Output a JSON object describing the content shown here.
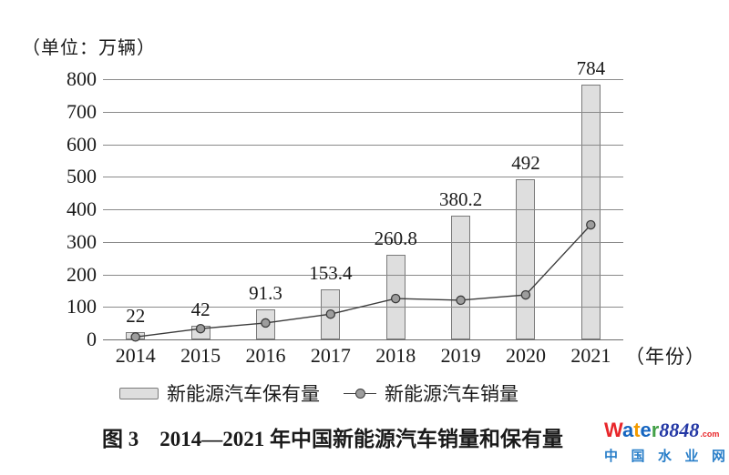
{
  "unit_label": "（单位：万辆）",
  "chart_data": {
    "type": "bar+line",
    "categories": [
      "2014",
      "2015",
      "2016",
      "2017",
      "2018",
      "2019",
      "2020",
      "2021"
    ],
    "series": [
      {
        "name": "新能源汽车保有量",
        "type": "bar",
        "values": [
          22,
          42,
          91.3,
          153.4,
          260.8,
          380.2,
          492,
          784
        ],
        "data_labels": [
          "22",
          "42",
          "91.3",
          "153.4",
          "260.8",
          "380.2",
          "492",
          "784"
        ]
      },
      {
        "name": "新能源汽车销量",
        "type": "line",
        "values": [
          7.5,
          33,
          50.7,
          77.7,
          125.6,
          120.6,
          136.7,
          352.1
        ],
        "values_are_estimates": true
      }
    ],
    "ylim": [
      0,
      800
    ],
    "yticks": [
      0,
      100,
      200,
      300,
      400,
      500,
      600,
      700,
      800
    ],
    "x_axis_suffix": "（年份）",
    "grid": true,
    "legend_position": "bottom-center"
  },
  "caption": "图 3　2014—2021 年中国新能源汽车销量和保有量",
  "watermark": {
    "brand_letters": [
      {
        "ch": "W",
        "color": "#e8262a"
      },
      {
        "ch": "a",
        "color": "#1565c0"
      },
      {
        "ch": "t",
        "color": "#f29b00"
      },
      {
        "ch": "e",
        "color": "#1565c0"
      },
      {
        "ch": "r",
        "color": "#43a047"
      }
    ],
    "brand_number": "8848",
    "brand_tld": ".com",
    "subtitle_chars": [
      "中",
      "国",
      "水",
      "业",
      "网"
    ]
  },
  "colors": {
    "bar_fill": "#dedede",
    "bar_stroke": "#7a7a7a",
    "gridline": "#8a8a8a",
    "line": "#3c3c3c",
    "marker_fill": "#9d9d9d",
    "text": "#1a1a1a"
  }
}
